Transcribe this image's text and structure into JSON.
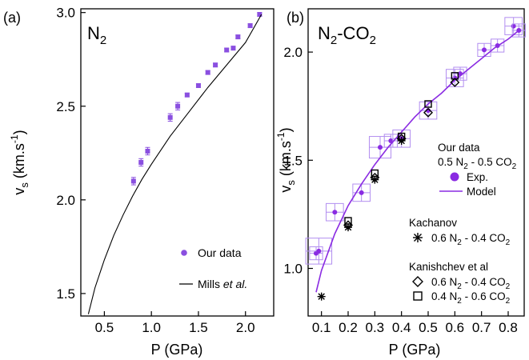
{
  "colors": {
    "exp": "#8a4fe0",
    "model": "#8a2be2",
    "mills": "#000000",
    "axis": "#000000"
  },
  "chart_data": [
    {
      "type": "scatter",
      "panel_tag": "(a)",
      "title": "N",
      "title_sub": "2",
      "xlabel": "P (GPa)",
      "ylabel": "v",
      "ylabel_sub": "s",
      "ylabel_unit_pre": " (km.s",
      "ylabel_unit_sup": "-1",
      "ylabel_unit_post": ")",
      "xlim": [
        0.25,
        2.3
      ],
      "ylim": [
        1.38,
        3.02
      ],
      "xticks": [
        0.5,
        1.0,
        1.5,
        2.0
      ],
      "xtick_labels": [
        "0.5",
        "1.0",
        "1.5",
        "2.0"
      ],
      "yticks": [
        1.5,
        2.0,
        2.5,
        3.0
      ],
      "ytick_labels": [
        "1.5",
        "2.0",
        "2.5",
        "3.0"
      ],
      "legend": [
        {
          "kind": "marker",
          "label": "Our data"
        },
        {
          "kind": "line",
          "label": "Mills ",
          "label_italic": "et al."
        }
      ],
      "series": [
        {
          "name": "Our data",
          "kind": "points",
          "x": [
            0.81,
            0.89,
            0.96,
            1.2,
            1.28,
            1.38,
            1.5,
            1.6,
            1.68,
            1.8,
            1.87,
            1.92,
            2.05,
            2.15
          ],
          "y": [
            2.1,
            2.2,
            2.26,
            2.44,
            2.5,
            2.56,
            2.61,
            2.68,
            2.72,
            2.8,
            2.81,
            2.87,
            2.93,
            2.99
          ],
          "err": [
            0.02,
            0.02,
            0.02,
            0.02,
            0.02,
            0.01,
            0.01,
            0.01,
            0.01,
            0.01,
            0.01,
            0.01,
            0.01,
            0.01
          ]
        },
        {
          "name": "Mills et al.",
          "kind": "line",
          "x": [
            0.33,
            0.4,
            0.5,
            0.6,
            0.7,
            0.8,
            0.9,
            1.0,
            1.2,
            1.4,
            1.6,
            1.8,
            2.0,
            2.17
          ],
          "y": [
            1.39,
            1.53,
            1.68,
            1.81,
            1.92,
            2.02,
            2.11,
            2.19,
            2.34,
            2.47,
            2.6,
            2.72,
            2.84,
            2.99
          ]
        }
      ]
    },
    {
      "type": "scatter",
      "panel_tag": "(b)",
      "title": "N",
      "title_sub": "2",
      "title_rest": "-CO",
      "title_sub2": "2",
      "xlabel": "P (GPa)",
      "ylabel": "v",
      "ylabel_sub": "s",
      "ylabel_unit_pre": " (km.s",
      "ylabel_unit_sup": "-1",
      "ylabel_unit_post": ")",
      "xlim": [
        0.05,
        0.86
      ],
      "ylim": [
        0.78,
        2.2
      ],
      "xticks": [
        0.1,
        0.2,
        0.3,
        0.4,
        0.5,
        0.6,
        0.7,
        0.8
      ],
      "xtick_labels": [
        "0.1",
        "0.2",
        "0.3",
        "0.4",
        "0.5",
        "0.6",
        "0.7",
        "0.8"
      ],
      "yticks": [
        1.0,
        1.5,
        2.0
      ],
      "ytick_labels": [
        "1.0",
        "1.5",
        "2.0"
      ],
      "legend": {
        "our_data_title": "Our data",
        "our_data_comp": [
          "0.5 N",
          "2",
          " - 0.5 CO",
          "2"
        ],
        "exp_label": "Exp.",
        "model_label": "Model",
        "kachanov_title": "Kachanov",
        "kachanov_comp": [
          "0.6 N",
          "2",
          " - 0.4 CO",
          "2"
        ],
        "kanishchev_title": "Kanishchev et al",
        "kanishchev_comp1": [
          "0.6 N",
          "2",
          " - 0.4 CO",
          "2"
        ],
        "kanishchev_comp2": [
          "0.4 N",
          "2",
          " - 0.6 CO",
          "2"
        ]
      },
      "series": [
        {
          "name": "Exp.",
          "kind": "points_box",
          "x": [
            0.08,
            0.09,
            0.15,
            0.25,
            0.32,
            0.36,
            0.4,
            0.5,
            0.6,
            0.62,
            0.71,
            0.76,
            0.82,
            0.84
          ],
          "y": [
            1.07,
            1.08,
            1.26,
            1.35,
            1.56,
            1.59,
            1.6,
            1.73,
            1.88,
            1.9,
            2.01,
            2.03,
            2.12,
            2.1
          ],
          "box": [
            0.03,
            0.06,
            0.04,
            0.04,
            0.05,
            0.03,
            0.04,
            0.04,
            0.04,
            0.03,
            0.03,
            0.03,
            0.04,
            0.03
          ]
        },
        {
          "name": "Model",
          "kind": "line",
          "x": [
            0.08,
            0.1,
            0.15,
            0.2,
            0.25,
            0.3,
            0.35,
            0.4,
            0.45,
            0.5,
            0.55,
            0.6,
            0.65,
            0.7,
            0.75,
            0.8,
            0.84
          ],
          "y": [
            0.89,
            0.99,
            1.16,
            1.29,
            1.39,
            1.48,
            1.56,
            1.63,
            1.7,
            1.76,
            1.81,
            1.87,
            1.92,
            1.97,
            2.02,
            2.06,
            2.1
          ]
        },
        {
          "name": "Kachanov 0.6 N2 - 0.4 CO2",
          "kind": "asterisk",
          "x": [
            0.1,
            0.2,
            0.3,
            0.4
          ],
          "y": [
            0.87,
            1.19,
            1.41,
            1.59
          ]
        },
        {
          "name": "Kanishchev et al 0.6 N2 - 0.4 CO2",
          "kind": "diamond",
          "x": [
            0.2,
            0.3,
            0.4,
            0.5,
            0.6
          ],
          "y": [
            1.2,
            1.42,
            1.6,
            1.72,
            1.86
          ]
        },
        {
          "name": "Kanishchev et al 0.4 N2 - 0.6 CO2",
          "kind": "square",
          "x": [
            0.2,
            0.3,
            0.4,
            0.5,
            0.6
          ],
          "y": [
            1.22,
            1.44,
            1.61,
            1.76,
            1.89
          ]
        }
      ]
    }
  ]
}
